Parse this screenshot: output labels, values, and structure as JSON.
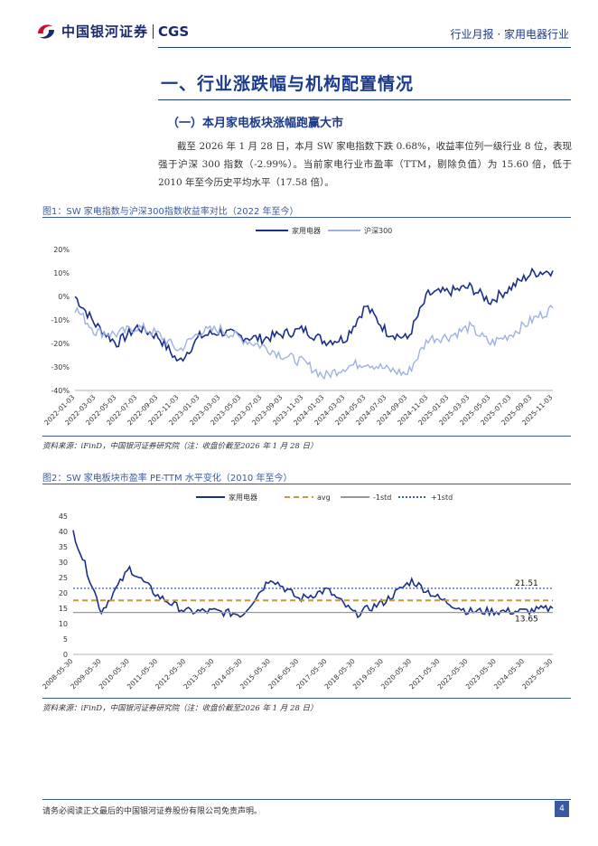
{
  "header": {
    "logo_cn": "中国银河证券",
    "logo_en": "CGS",
    "report_type": "行业月报 · 家用电器行业"
  },
  "section": {
    "title": "一、行业涨跌幅与机构配置情况",
    "subtitle": "（一）本月家电板块涨幅跑赢大市",
    "paragraph": "截至 2026 年 1 月 28 日，本月 SW 家电指数下跌 0.68%，收益率位列一级行业 8 位，表现强于沪深 300 指数（-2.99%）。当前家电行业市盈率（TTM，剔除负值）为 15.60 倍，低于 2010 年至今历史平均水平（17.58 倍）。"
  },
  "fig1": {
    "title": "图1：SW 家电指数与沪深300指数收益率对比（2022 年至今）",
    "source": "资料来源：iFinD，中国银河证券研究院（注：收盘价截至2026 年 1 月 28 日）"
  },
  "fig2": {
    "title": "图2：SW 家电板块市盈率 PE-TTM 水平变化（2010 年至今）",
    "source": "资料来源：iFinD，中国银河证券研究院（注：收盘价截至2026 年 1 月 28 日）"
  },
  "footer": {
    "disclaimer": "请务必阅读正文最后的中国银河证券股份有限公司免责声明。",
    "page": "4"
  },
  "chart_data": [
    {
      "type": "line",
      "title": "SW 家电指数与沪深300指数收益率对比（2022 年至今）",
      "ylim": [
        -40,
        20
      ],
      "yticks": [
        "20%",
        "10%",
        "0%",
        "-10%",
        "-20%",
        "-30%",
        "-40%"
      ],
      "categories": [
        "2022-01-03",
        "2022-03-03",
        "2022-05-03",
        "2022-07-03",
        "2022-09-03",
        "2022-11-03",
        "2023-01-03",
        "2023-03-03",
        "2023-05-03",
        "2023-07-03",
        "2023-09-03",
        "2023-11-03",
        "2024-01-03",
        "2024-03-03",
        "2024-05-03",
        "2024-07-03",
        "2024-09-03",
        "2024-11-03",
        "2025-01-03",
        "2025-03-03",
        "2025-05-03",
        "2025-07-03",
        "2025-09-03",
        "2025-11-03"
      ],
      "series": [
        {
          "name": "家用电器",
          "color": "#1a2f8a",
          "values": [
            0,
            -12,
            -20,
            -13,
            -17,
            -28,
            -17,
            -15,
            -17,
            -18,
            -16,
            -14,
            -19,
            -18,
            -4,
            -15,
            -18,
            1,
            2,
            4,
            -2,
            4,
            10,
            11
          ]
        },
        {
          "name": "沪深300",
          "color": "#9db2e0",
          "values": [
            -5,
            -15,
            -16,
            -13,
            -16,
            -23,
            -15,
            -14,
            -18,
            -21,
            -25,
            -28,
            -34,
            -30,
            -28,
            -31,
            -33,
            -18,
            -17,
            -13,
            -20,
            -16,
            -10,
            -5
          ]
        }
      ]
    },
    {
      "type": "line",
      "title": "SW 家电板块市盈率 PE-TTM 水平变化（2010 年至今）",
      "ylim": [
        0,
        45
      ],
      "yticks": [
        "45",
        "40",
        "35",
        "30",
        "25",
        "20",
        "15",
        "10",
        "5",
        "0"
      ],
      "categories": [
        "2008-05-30",
        "2009-05-30",
        "2010-05-30",
        "2011-05-30",
        "2012-05-30",
        "2013-05-30",
        "2014-05-30",
        "2015-05-30",
        "2016-05-30",
        "2017-05-30",
        "2018-05-30",
        "2019-05-30",
        "2020-05-30",
        "2021-05-30",
        "2022-05-30",
        "2023-05-30",
        "2024-05-30",
        "2025-05-30"
      ],
      "series": [
        {
          "name": "家用电器",
          "color": "#1a2f8a",
          "values": [
            40,
            14,
            28,
            19,
            14,
            14,
            13,
            25,
            18,
            21,
            13,
            17,
            24,
            18,
            14,
            14,
            14,
            15
          ]
        },
        {
          "name": "avg",
          "color": "#c8963a",
          "constant": 17.58
        },
        {
          "name": "-1std",
          "color": "#999999",
          "constant": 13.65
        },
        {
          "name": "+1std",
          "color": "#3a5ad0",
          "constant": 21.51
        }
      ],
      "labels": [
        "21.51",
        "13.65"
      ]
    }
  ]
}
